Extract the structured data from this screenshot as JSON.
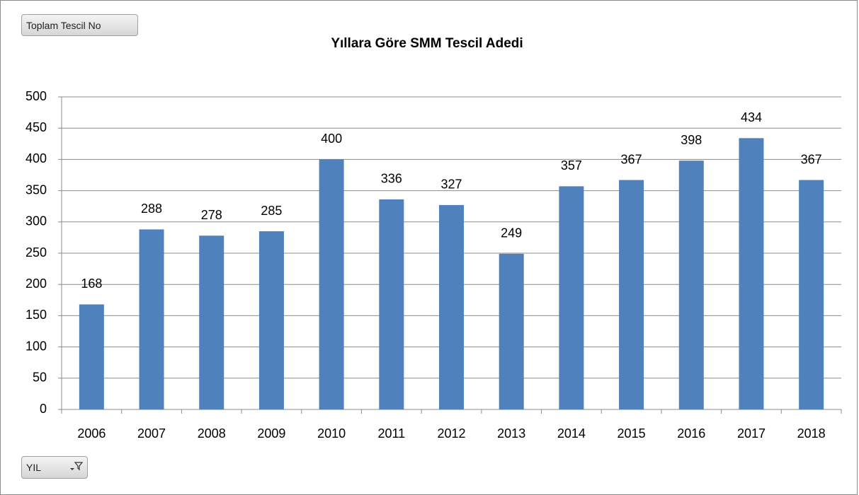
{
  "field_buttons": {
    "value_field": "Toplam Tescil No",
    "axis_field": "YIL"
  },
  "chart_data": {
    "type": "bar",
    "title": "Yıllara Göre SMM Tescil Adedi",
    "categories": [
      "2006",
      "2007",
      "2008",
      "2009",
      "2010",
      "2011",
      "2012",
      "2013",
      "2014",
      "2015",
      "2016",
      "2017",
      "2018"
    ],
    "values": [
      168,
      288,
      278,
      285,
      400,
      336,
      327,
      249,
      357,
      367,
      398,
      434,
      367
    ],
    "color": "#4f81bd",
    "ylim": [
      0,
      500
    ],
    "yticks": [
      0,
      50,
      100,
      150,
      200,
      250,
      300,
      350,
      400,
      450,
      500
    ],
    "grid": true
  }
}
